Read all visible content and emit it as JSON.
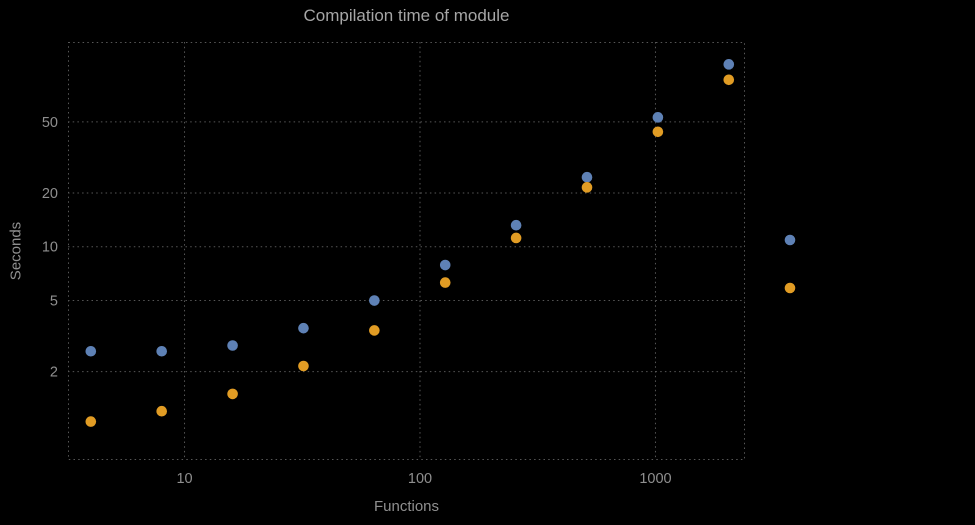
{
  "title": "Compilation time of module",
  "xlabel": "Functions",
  "ylabel": "Seconds",
  "colors": {
    "background": "#000000",
    "grid": "#575757",
    "frame": "#575757",
    "tick_label": "#8f8f8f",
    "title": "#a6a6a6",
    "series1": "#5E81B5",
    "series2": "#E19C24"
  },
  "chart_data": {
    "type": "scatter",
    "title": "Compilation time of module",
    "xlabel": "Functions",
    "ylabel": "Seconds",
    "xscale": "log",
    "yscale": "log",
    "xlim": [
      3.2,
      2400
    ],
    "ylim": [
      0.64,
      140
    ],
    "xticks": [
      10,
      100,
      1000
    ],
    "yticks": [
      2,
      5,
      10,
      20,
      50
    ],
    "grid": true,
    "grid_style": "dotted",
    "x": [
      4,
      8,
      16,
      32,
      64,
      128,
      256,
      512,
      1024,
      2048
    ],
    "series": [
      {
        "name": "series-1-blue",
        "color": "#5E81B5",
        "values": [
          2.6,
          2.6,
          2.8,
          3.5,
          5.0,
          7.9,
          13.2,
          24.5,
          53,
          105
        ]
      },
      {
        "name": "series-2-orange",
        "color": "#E19C24",
        "values": [
          1.05,
          1.2,
          1.5,
          2.15,
          3.4,
          6.3,
          11.2,
          21.5,
          44,
          86
        ]
      }
    ],
    "legend": {
      "position": "right-outside",
      "markers_only": true,
      "entries": [
        {
          "series": "series-1-blue",
          "color": "#5E81B5",
          "label": ""
        },
        {
          "series": "series-2-orange",
          "color": "#E19C24",
          "label": ""
        }
      ]
    }
  }
}
